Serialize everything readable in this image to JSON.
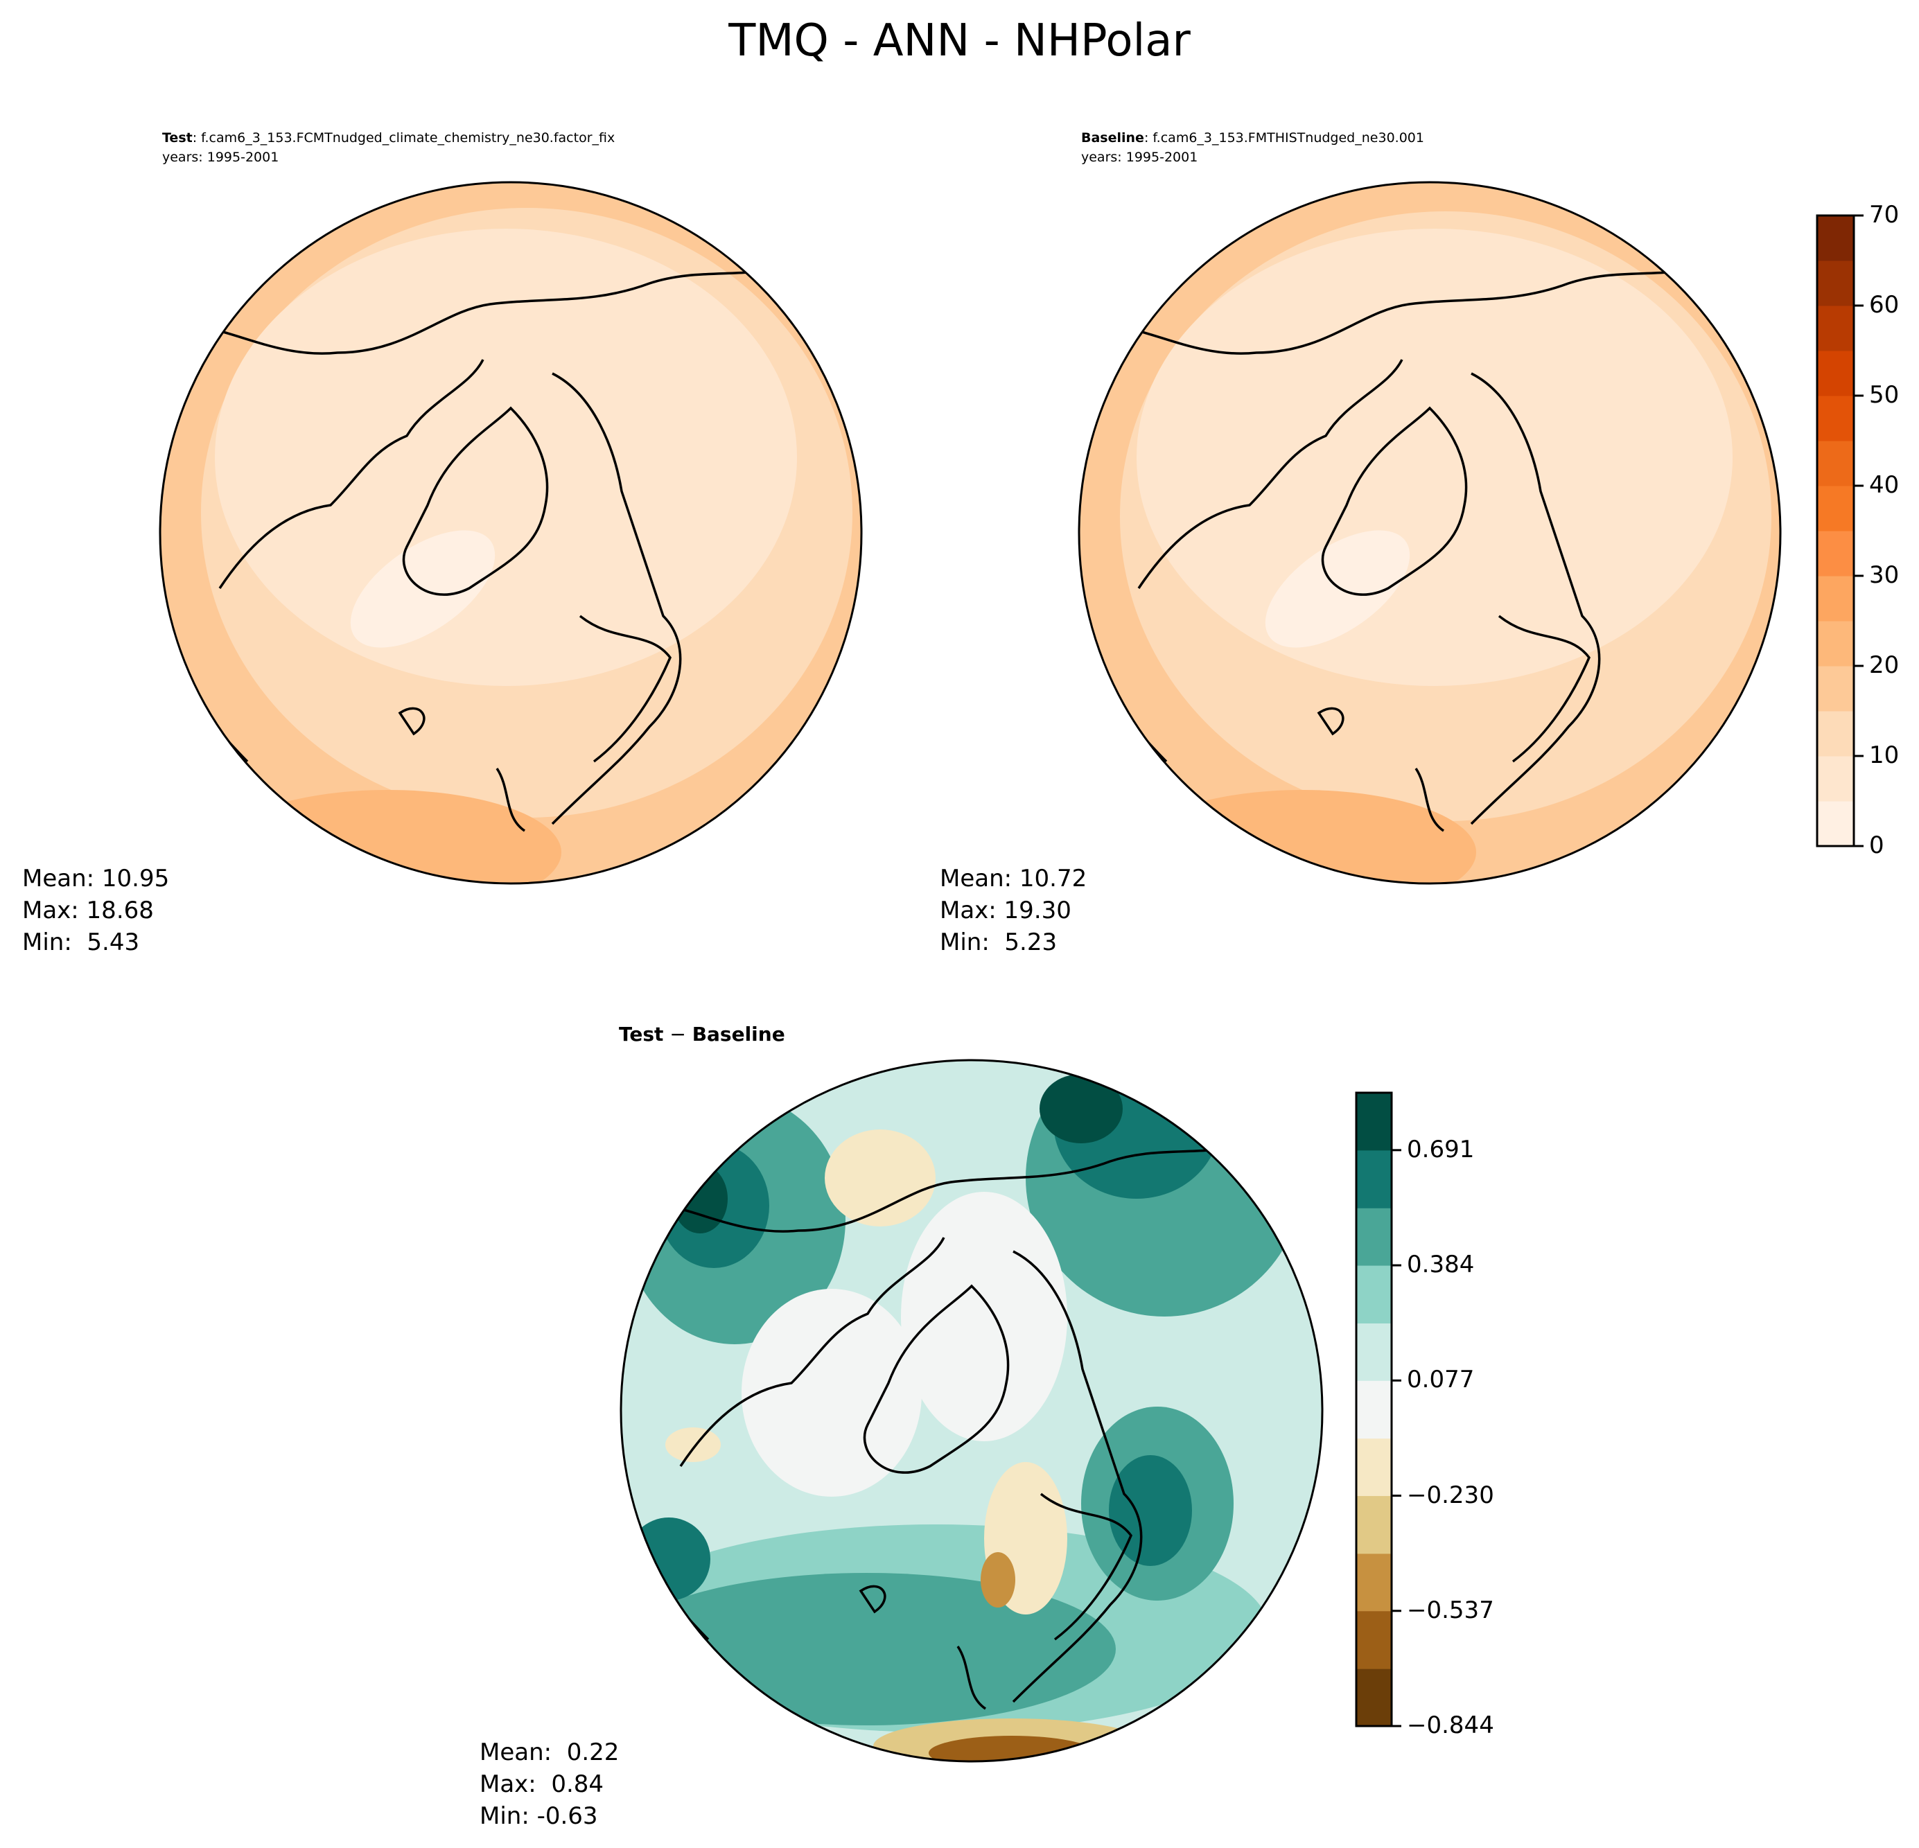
{
  "title": "TMQ - ANN - NHPolar",
  "panels": {
    "test": {
      "label": "Test",
      "case": ": f.cam6_3_153.FCMTnudged_climate_chemistry_ne30.factor_fix",
      "years": "years: 1995-2001",
      "stats": {
        "mean": "Mean: 10.95",
        "max": "Max: 18.68",
        "min": "Min:  5.43"
      }
    },
    "baseline": {
      "label": "Baseline",
      "case": ": f.cam6_3_153.FMTHISTnudged_ne30.001",
      "years": "years: 1995-2001",
      "stats": {
        "mean": "Mean: 10.72",
        "max": "Max: 19.30",
        "min": "Min:  5.23"
      }
    },
    "diff": {
      "title_a": "Test",
      "title_op": " − ",
      "title_b": "Baseline",
      "stats": {
        "mean": "Mean:  0.22",
        "max": "Max:  0.84",
        "min": "Min: -0.63"
      }
    }
  },
  "chart_data": [
    {
      "type": "heatmap",
      "projection": "north-polar-stereographic",
      "panel": "test",
      "colormap": "Oranges",
      "levels": [
        0,
        5,
        10,
        15,
        20,
        25,
        30,
        35,
        40,
        45,
        50,
        55,
        60,
        65,
        70
      ],
      "colorbar_ticks": [
        "0",
        "10",
        "20",
        "30",
        "40",
        "50",
        "60",
        "70"
      ],
      "colors": [
        "#fff0e3",
        "#fee6ce",
        "#fddbb8",
        "#fdc997",
        "#fdb87a",
        "#fda660",
        "#fc8e44",
        "#f67925",
        "#ed6a19",
        "#e35308",
        "#d44401",
        "#b83b02",
        "#9b3203",
        "#7f2704"
      ]
    },
    {
      "type": "heatmap",
      "projection": "north-polar-stereographic",
      "panel": "baseline",
      "colormap": "Oranges",
      "shared_colorbar": true
    },
    {
      "type": "heatmap",
      "projection": "north-polar-stereographic",
      "panel": "diff",
      "colormap": "BrBG",
      "levels": [
        -0.844,
        -0.691,
        -0.537,
        -0.384,
        -0.23,
        -0.077,
        0.077,
        0.23,
        0.384,
        0.537,
        0.691,
        0.844
      ],
      "colorbar_ticks": [
        "−0.844",
        "−0.537",
        "−0.230",
        "0.077",
        "0.384",
        "0.691"
      ],
      "colors": [
        "#6b3e09",
        "#9c5f17",
        "#c79140",
        "#e1c986",
        "#f6e8c5",
        "#f3f5f4",
        "#cdebe5",
        "#8ed3c6",
        "#4aa697",
        "#137871",
        "#024e43"
      ]
    }
  ]
}
